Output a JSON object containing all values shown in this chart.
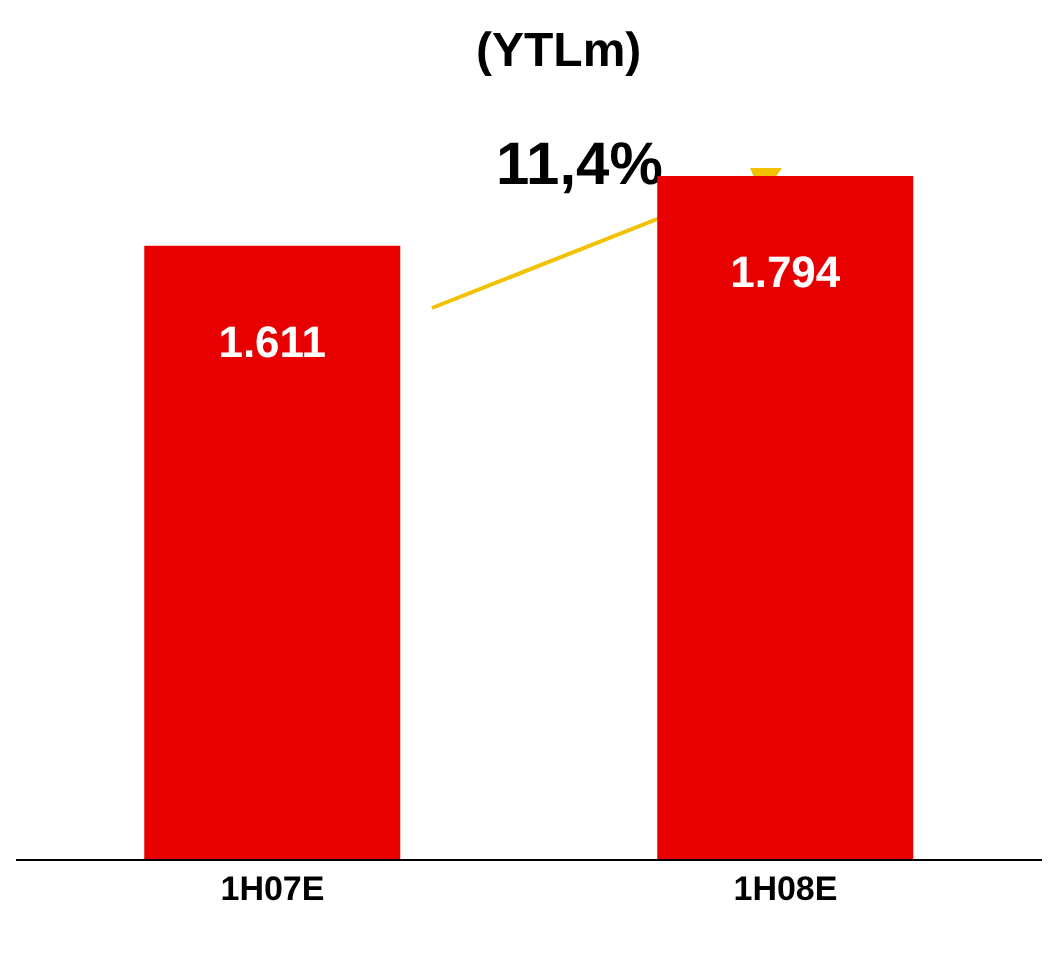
{
  "chart_data": {
    "type": "bar",
    "title": "(YTLm)",
    "categories": [
      "1H07E",
      "1H08E"
    ],
    "values": [
      1611,
      1794
    ],
    "value_labels": [
      "1.611",
      "1.794"
    ],
    "color": "#e80000",
    "annotations": [
      "11,4%"
    ]
  }
}
